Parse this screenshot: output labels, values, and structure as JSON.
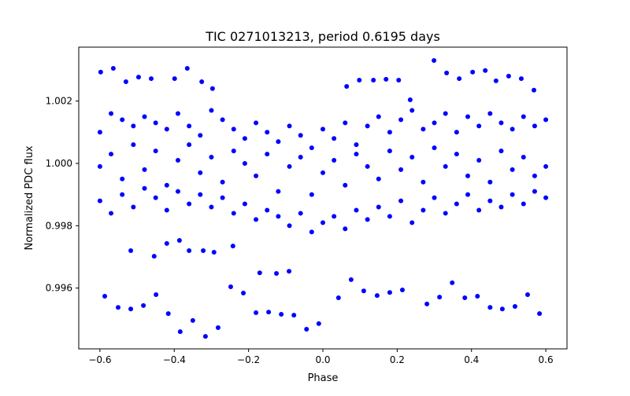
{
  "chart_data": {
    "type": "scatter",
    "title": "TIC 0271013213, period 0.6195 days",
    "xlabel": "Phase",
    "ylabel": "Normalized PDC flux",
    "xlim": [
      -0.657,
      0.657
    ],
    "ylim": [
      0.99405,
      1.00373
    ],
    "xticks": [
      -0.6,
      -0.4,
      -0.2,
      0.0,
      0.2,
      0.4,
      0.6
    ],
    "xtick_labels": [
      "−0.6",
      "−0.4",
      "−0.2",
      "0.0",
      "0.2",
      "0.4",
      "0.6"
    ],
    "yticks": [
      0.996,
      0.998,
      1.0,
      1.002
    ],
    "ytick_labels": [
      "0.996",
      "0.998",
      "1.000",
      "1.002"
    ],
    "grid": false,
    "marker_color": "#0000ff",
    "series": [
      {
        "name": "PDC flux",
        "points": [
          [
            -0.598,
            1.00293
          ],
          [
            -0.564,
            1.00305
          ],
          [
            -0.53,
            1.00262
          ],
          [
            -0.496,
            1.00277
          ],
          [
            -0.462,
            1.00272
          ],
          [
            -0.399,
            1.00272
          ],
          [
            -0.365,
            1.00305
          ],
          [
            -0.326,
            1.00262
          ],
          [
            -0.297,
            1.0024
          ],
          [
            0.064,
            1.00247
          ],
          [
            0.098,
            1.00267
          ],
          [
            0.136,
            1.00267
          ],
          [
            0.17,
            1.0027
          ],
          [
            0.204,
            1.00267
          ],
          [
            0.235,
            1.00204
          ],
          [
            0.299,
            1.0033
          ],
          [
            0.333,
            1.0029
          ],
          [
            0.367,
            1.00272
          ],
          [
            0.403,
            1.00293
          ],
          [
            0.437,
            1.00298
          ],
          [
            0.466,
            1.00265
          ],
          [
            0.5,
            1.0028
          ],
          [
            0.534,
            1.00272
          ],
          [
            0.568,
            1.00235
          ],
          [
            -0.587,
            0.99574
          ],
          [
            -0.551,
            0.99538
          ],
          [
            -0.517,
            0.99533
          ],
          [
            -0.483,
            0.99544
          ],
          [
            -0.449,
            0.99579
          ],
          [
            -0.416,
            0.99518
          ],
          [
            -0.384,
            0.9946
          ],
          [
            -0.35,
            0.99496
          ],
          [
            -0.316,
            0.99445
          ],
          [
            -0.282,
            0.99473
          ],
          [
            -0.248,
            0.99604
          ],
          [
            -0.214,
            0.99584
          ],
          [
            -0.18,
            0.99521
          ],
          [
            -0.146,
            0.99523
          ],
          [
            -0.112,
            0.99516
          ],
          [
            -0.078,
            0.99513
          ],
          [
            -0.044,
            0.99468
          ],
          [
            -0.011,
            0.99486
          ],
          [
            0.042,
            0.99569
          ],
          [
            0.076,
            0.99627
          ],
          [
            0.11,
            0.99591
          ],
          [
            0.146,
            0.99576
          ],
          [
            0.18,
            0.99586
          ],
          [
            0.214,
            0.99594
          ],
          [
            0.28,
            0.99549
          ],
          [
            0.314,
            0.99571
          ],
          [
            0.348,
            0.99617
          ],
          [
            0.382,
            0.99569
          ],
          [
            0.416,
            0.99574
          ],
          [
            0.45,
            0.99538
          ],
          [
            0.483,
            0.99533
          ],
          [
            0.517,
            0.99541
          ],
          [
            0.551,
            0.99579
          ],
          [
            0.583,
            0.99518
          ],
          [
            -0.517,
            0.9972
          ],
          [
            -0.454,
            0.99702
          ],
          [
            -0.42,
            0.99743
          ],
          [
            -0.386,
            0.99753
          ],
          [
            -0.36,
            0.9972
          ],
          [
            -0.322,
            0.9972
          ],
          [
            -0.293,
            0.99715
          ],
          [
            -0.242,
            0.99735
          ],
          [
            -0.17,
            0.99649
          ],
          [
            -0.125,
            0.99647
          ],
          [
            -0.091,
            0.99654
          ],
          [
            -0.6,
            1.001
          ],
          [
            -0.57,
            1.0016
          ],
          [
            -0.54,
            1.0014
          ],
          [
            -0.51,
            1.0012
          ],
          [
            -0.48,
            1.0015
          ],
          [
            -0.45,
            1.0013
          ],
          [
            -0.42,
            1.0011
          ],
          [
            -0.39,
            1.0016
          ],
          [
            -0.36,
            1.0012
          ],
          [
            -0.33,
            1.0009
          ],
          [
            -0.3,
            1.0017
          ],
          [
            -0.27,
            1.0014
          ],
          [
            -0.24,
            1.0011
          ],
          [
            -0.21,
            1.0008
          ],
          [
            -0.18,
            1.0013
          ],
          [
            -0.15,
            1.001
          ],
          [
            -0.12,
            1.0007
          ],
          [
            -0.09,
            1.0012
          ],
          [
            -0.06,
            1.0009
          ],
          [
            -0.03,
            1.0005
          ],
          [
            0.0,
            1.0011
          ],
          [
            0.03,
            1.0008
          ],
          [
            0.06,
            1.0013
          ],
          [
            0.09,
            1.0006
          ],
          [
            0.12,
            1.0012
          ],
          [
            0.15,
            1.0015
          ],
          [
            0.18,
            1.001
          ],
          [
            0.21,
            1.0014
          ],
          [
            0.24,
            1.0017
          ],
          [
            0.27,
            1.0011
          ],
          [
            0.3,
            1.0013
          ],
          [
            0.33,
            1.0016
          ],
          [
            0.36,
            1.001
          ],
          [
            0.39,
            1.0015
          ],
          [
            0.42,
            1.0012
          ],
          [
            0.45,
            1.0016
          ],
          [
            0.48,
            1.0013
          ],
          [
            0.51,
            1.0011
          ],
          [
            0.54,
            1.0015
          ],
          [
            0.57,
            1.0012
          ],
          [
            0.6,
            1.0014
          ],
          [
            -0.6,
            0.9999
          ],
          [
            -0.57,
            1.0003
          ],
          [
            -0.54,
            0.9995
          ],
          [
            -0.51,
            1.0006
          ],
          [
            -0.48,
            0.9998
          ],
          [
            -0.45,
            1.0004
          ],
          [
            -0.42,
            0.9993
          ],
          [
            -0.39,
            1.0001
          ],
          [
            -0.36,
            1.0006
          ],
          [
            -0.33,
            0.9997
          ],
          [
            -0.3,
            1.0002
          ],
          [
            -0.27,
            0.9994
          ],
          [
            -0.24,
            1.0004
          ],
          [
            -0.21,
            1.0
          ],
          [
            -0.18,
            0.9996
          ],
          [
            -0.15,
            1.0003
          ],
          [
            -0.12,
            0.9991
          ],
          [
            -0.09,
            0.9999
          ],
          [
            -0.06,
            1.0002
          ],
          [
            -0.03,
            0.999
          ],
          [
            0.0,
            0.9997
          ],
          [
            0.03,
            1.0001
          ],
          [
            0.06,
            0.9993
          ],
          [
            0.09,
            1.0003
          ],
          [
            0.12,
            0.9999
          ],
          [
            0.15,
            0.9995
          ],
          [
            0.18,
            1.0004
          ],
          [
            0.21,
            0.9998
          ],
          [
            0.24,
            1.0002
          ],
          [
            0.27,
            0.9994
          ],
          [
            0.3,
            1.0005
          ],
          [
            0.33,
            0.9999
          ],
          [
            0.36,
            1.0003
          ],
          [
            0.39,
            0.9996
          ],
          [
            0.42,
            1.0001
          ],
          [
            0.45,
            0.9994
          ],
          [
            0.48,
            1.0004
          ],
          [
            0.51,
            0.9998
          ],
          [
            0.54,
            1.0002
          ],
          [
            0.57,
            0.9996
          ],
          [
            0.6,
            0.9999
          ],
          [
            -0.6,
            0.9988
          ],
          [
            -0.57,
            0.9984
          ],
          [
            -0.54,
            0.999
          ],
          [
            -0.51,
            0.9986
          ],
          [
            -0.48,
            0.9992
          ],
          [
            -0.45,
            0.9989
          ],
          [
            -0.42,
            0.9985
          ],
          [
            -0.39,
            0.9991
          ],
          [
            -0.36,
            0.9987
          ],
          [
            -0.33,
            0.999
          ],
          [
            -0.3,
            0.9986
          ],
          [
            -0.27,
            0.9989
          ],
          [
            -0.24,
            0.9984
          ],
          [
            -0.21,
            0.9987
          ],
          [
            -0.18,
            0.9982
          ],
          [
            -0.15,
            0.9985
          ],
          [
            -0.12,
            0.9983
          ],
          [
            -0.09,
            0.998
          ],
          [
            -0.06,
            0.9984
          ],
          [
            -0.03,
            0.9978
          ],
          [
            0.0,
            0.9981
          ],
          [
            0.03,
            0.9983
          ],
          [
            0.06,
            0.9979
          ],
          [
            0.09,
            0.9985
          ],
          [
            0.12,
            0.9982
          ],
          [
            0.15,
            0.9986
          ],
          [
            0.18,
            0.9983
          ],
          [
            0.21,
            0.9988
          ],
          [
            0.24,
            0.9981
          ],
          [
            0.27,
            0.9985
          ],
          [
            0.3,
            0.9989
          ],
          [
            0.33,
            0.9984
          ],
          [
            0.36,
            0.9987
          ],
          [
            0.39,
            0.999
          ],
          [
            0.42,
            0.9985
          ],
          [
            0.45,
            0.9988
          ],
          [
            0.48,
            0.9986
          ],
          [
            0.51,
            0.999
          ],
          [
            0.54,
            0.9987
          ],
          [
            0.57,
            0.9991
          ],
          [
            0.6,
            0.9989
          ]
        ]
      }
    ]
  }
}
